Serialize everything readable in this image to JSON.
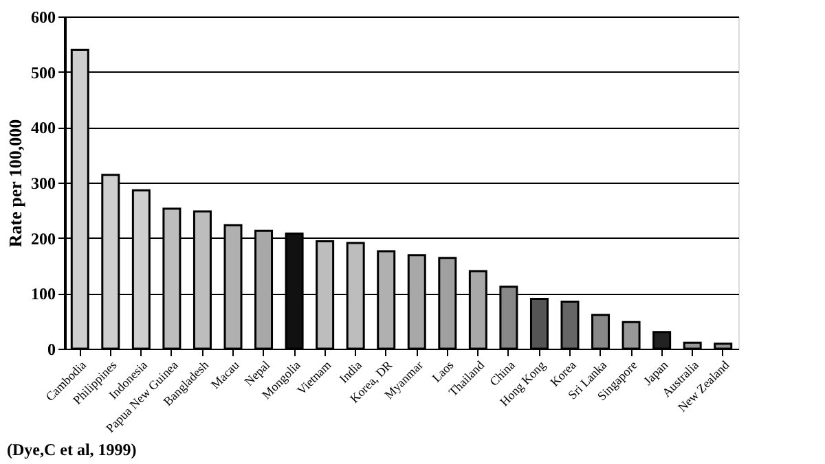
{
  "chart_data": {
    "type": "bar",
    "ylabel": "Rate per 100,000",
    "categories": [
      "Cambodia",
      "Philippines",
      "Indonesia",
      "Papua New Guinea",
      "Bangladesh",
      "Macau",
      "Nepal",
      "Mongolia",
      "Vietnam",
      "India",
      "Korea, DR",
      "Myanmar",
      "Laos",
      "Thailand",
      "China",
      "Hong Kong",
      "Korea",
      "Sri Lanka",
      "Singapore",
      "Japan",
      "Australia",
      "New Zealand"
    ],
    "values": [
      540,
      314,
      286,
      253,
      248,
      223,
      213,
      208,
      194,
      191,
      176,
      169,
      164,
      140,
      112,
      90,
      85,
      61,
      48,
      30,
      11,
      9
    ],
    "colors": [
      "#cfcfcf",
      "#cfcfcf",
      "#cfcfcf",
      "#bdbdbd",
      "#bdbdbd",
      "#b0b0b0",
      "#a8a8a8",
      "#111111",
      "#bdbdbd",
      "#bdbdbd",
      "#b0b0b0",
      "#a8a8a8",
      "#a0a0a0",
      "#a8a8a8",
      "#888888",
      "#555555",
      "#666666",
      "#888888",
      "#999999",
      "#222222",
      "#999999",
      "#999999"
    ],
    "ylim": [
      0,
      600
    ],
    "yticks": [
      0,
      100,
      200,
      300,
      400,
      500,
      600
    ],
    "grid": "y",
    "annotations": [
      "(Dye,C et al, 1999)"
    ]
  }
}
